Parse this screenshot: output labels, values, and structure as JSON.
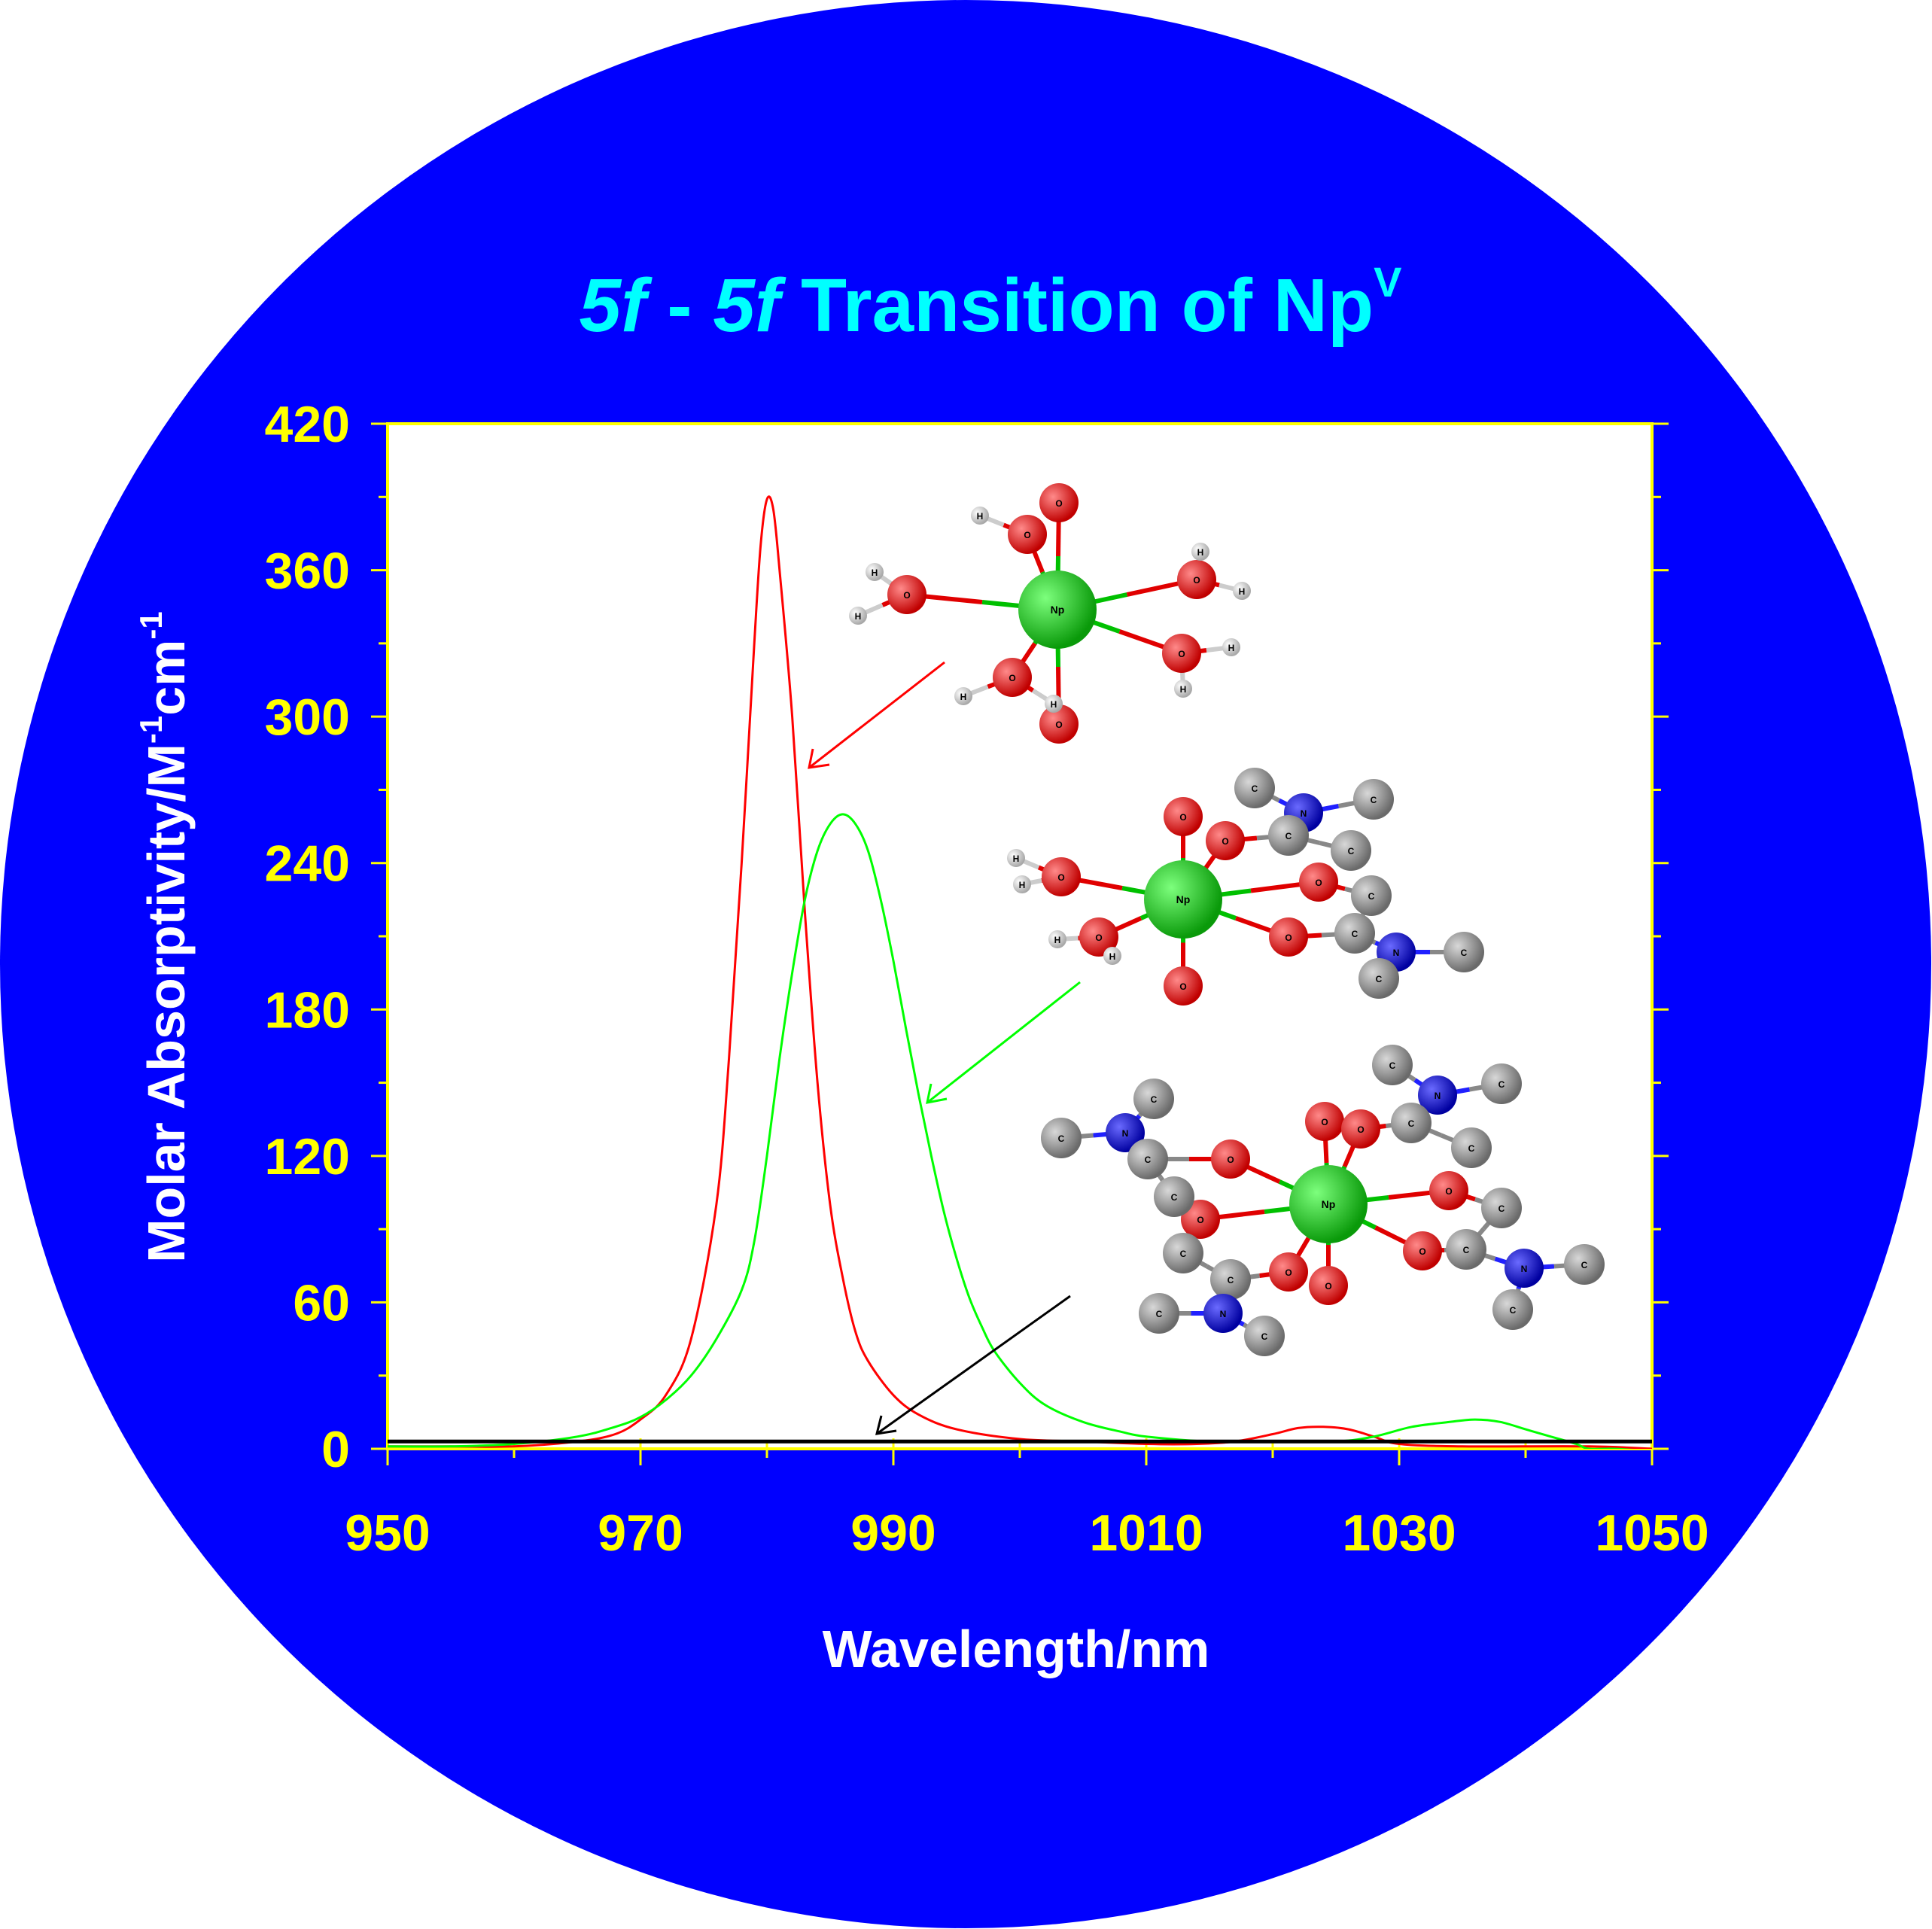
{
  "background": {
    "disc_color": "#0000ff",
    "page_color": "#ffffff"
  },
  "title": {
    "part1": "5f",
    "part2": " - ",
    "part3": "5f",
    "part4": " Transition of Np",
    "superscript": "V",
    "color": "#00ffff"
  },
  "axes": {
    "xlabel": "Wavelength/nm",
    "ylabel_main": "Molar Absorptivity/M",
    "ylabel_sup1": "-1",
    "ylabel_mid": "cm",
    "ylabel_sup2": "-1",
    "label_color": "#ffffff",
    "tick_color": "#ffff00"
  },
  "molecules": [
    {
      "name": "Np(V) aqua complex",
      "arrow_color": "#ff0000"
    },
    {
      "name": "Np(V) with two amide ligands",
      "arrow_color": "#00ff00"
    },
    {
      "name": "Np(V) with four amide ligands",
      "arrow_color": "#000000"
    }
  ],
  "atom_letters": {
    "np": "Np",
    "o": "O",
    "h": "H",
    "c": "C",
    "n": "N"
  },
  "chart_data": {
    "type": "line",
    "xlim": [
      950,
      1050
    ],
    "ylim": [
      0,
      420
    ],
    "xticks": [
      950,
      970,
      990,
      1010,
      1030,
      1050
    ],
    "yticks": [
      0,
      60,
      120,
      180,
      240,
      300,
      360,
      420
    ],
    "series": [
      {
        "color": "#ff0000",
        "points": [
          [
            950,
            1
          ],
          [
            955,
            1
          ],
          [
            960,
            1
          ],
          [
            965,
            3
          ],
          [
            968,
            6
          ],
          [
            970,
            12
          ],
          [
            972,
            22
          ],
          [
            974,
            45
          ],
          [
            976,
            100
          ],
          [
            977,
            160
          ],
          [
            978,
            240
          ],
          [
            979,
            330
          ],
          [
            979.5,
            370
          ],
          [
            980,
            389
          ],
          [
            980.5,
            385
          ],
          [
            981,
            360
          ],
          [
            982,
            300
          ],
          [
            983,
            220
          ],
          [
            984,
            150
          ],
          [
            985,
            100
          ],
          [
            986,
            70
          ],
          [
            987,
            48
          ],
          [
            988,
            36
          ],
          [
            990,
            22
          ],
          [
            992,
            14
          ],
          [
            995,
            8
          ],
          [
            1000,
            4
          ],
          [
            1005,
            3
          ],
          [
            1010,
            2
          ],
          [
            1014,
            2
          ],
          [
            1017,
            3
          ],
          [
            1020,
            6
          ],
          [
            1022,
            8.5
          ],
          [
            1024,
            9
          ],
          [
            1026,
            8
          ],
          [
            1028,
            5
          ],
          [
            1030,
            2
          ],
          [
            1035,
            1
          ],
          [
            1045,
            1
          ],
          [
            1050,
            0
          ]
        ]
      },
      {
        "color": "#00ff00",
        "points": [
          [
            950,
            1
          ],
          [
            955,
            1
          ],
          [
            960,
            2
          ],
          [
            965,
            5
          ],
          [
            968,
            9
          ],
          [
            970,
            13
          ],
          [
            972,
            20
          ],
          [
            974,
            30
          ],
          [
            976,
            45
          ],
          [
            978,
            65
          ],
          [
            979,
            85
          ],
          [
            980,
            120
          ],
          [
            981,
            160
          ],
          [
            982,
            195
          ],
          [
            983,
            225
          ],
          [
            984,
            245
          ],
          [
            985,
            256
          ],
          [
            986,
            260
          ],
          [
            987,
            256
          ],
          [
            988,
            245
          ],
          [
            989,
            225
          ],
          [
            990,
            200
          ],
          [
            991,
            172
          ],
          [
            992,
            145
          ],
          [
            993,
            120
          ],
          [
            994,
            97
          ],
          [
            995,
            78
          ],
          [
            996,
            62
          ],
          [
            997,
            50
          ],
          [
            998,
            40
          ],
          [
            1000,
            27
          ],
          [
            1002,
            18
          ],
          [
            1005,
            11
          ],
          [
            1008,
            7
          ],
          [
            1010,
            5
          ],
          [
            1015,
            3
          ],
          [
            1020,
            3
          ],
          [
            1025,
            3
          ],
          [
            1028,
            5
          ],
          [
            1031,
            9
          ],
          [
            1034,
            11
          ],
          [
            1036,
            12
          ],
          [
            1038,
            11
          ],
          [
            1040,
            8
          ],
          [
            1042,
            5
          ],
          [
            1044,
            2
          ],
          [
            1045,
            0
          ],
          [
            1047,
            0
          ],
          [
            1050,
            -1
          ]
        ]
      },
      {
        "color": "#000000",
        "points": [
          [
            950,
            3
          ],
          [
            980,
            3
          ],
          [
            1010,
            3
          ],
          [
            1050,
            3
          ]
        ]
      }
    ]
  }
}
